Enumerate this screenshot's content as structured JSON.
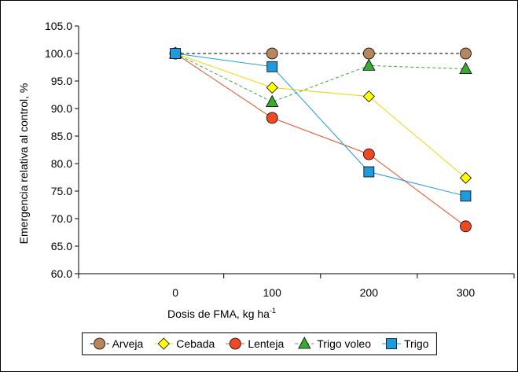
{
  "chart_data": {
    "type": "line",
    "title": "",
    "xlabel": "Dosis de FMA, kg ha",
    "xlabel_superscript": "-1",
    "ylabel": "Emergencia  relativa al control, %",
    "categories": [
      "0",
      "100",
      "200",
      "300"
    ],
    "x": [
      0,
      100,
      200,
      300
    ],
    "xlim": [
      -100,
      350
    ],
    "ylim": [
      60,
      105
    ],
    "yticks": [
      "60.0",
      "65.0",
      "70.0",
      "75.0",
      "80.0",
      "85.0",
      "90.0",
      "95.0",
      "100.0",
      "105.0"
    ],
    "grid": false,
    "legend_position": "bottom",
    "series": [
      {
        "name": "Arveja",
        "values": [
          100.0,
          100.0,
          100.0,
          100.0
        ],
        "color": "#b8865c",
        "line_color": "#000000",
        "dash": true,
        "marker": "circle"
      },
      {
        "name": "Cebada",
        "values": [
          100.0,
          93.8,
          92.2,
          77.4
        ],
        "color": "#ffff00",
        "line_color": "#f2d600",
        "dash": false,
        "marker": "diamond"
      },
      {
        "name": "Lenteja",
        "values": [
          100.0,
          88.3,
          81.7,
          68.6
        ],
        "color": "#ef4923",
        "line_color": "#e8502a",
        "dash": false,
        "marker": "circle"
      },
      {
        "name": "Trigo voleo",
        "values": [
          100.0,
          91.2,
          97.8,
          97.2
        ],
        "color": "#3aaa35",
        "line_color": "#3aaa35",
        "dash": true,
        "marker": "triangle"
      },
      {
        "name": "Trigo",
        "values": [
          100.0,
          97.6,
          78.5,
          74.1
        ],
        "color": "#1e9bdc",
        "line_color": "#1e9bdc",
        "dash": false,
        "marker": "square"
      }
    ]
  }
}
